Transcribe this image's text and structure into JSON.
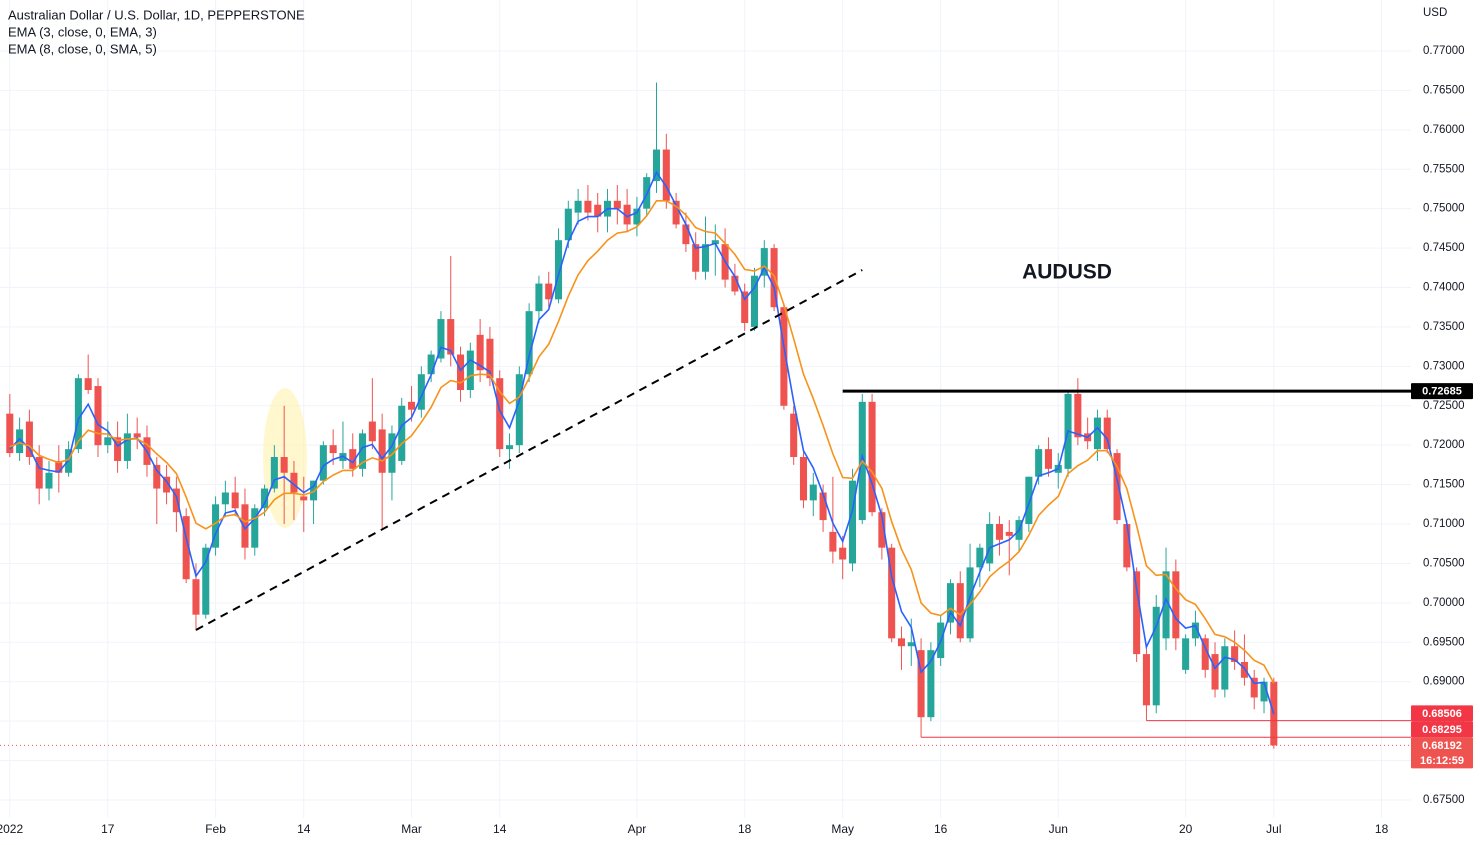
{
  "chart_data": {
    "type": "candlestick",
    "title": "Australian Dollar / U.S. Dollar, 1D, PEPPERSTONE",
    "currency": "USD",
    "annotation": "AUDUSD",
    "countdown": "16:12:59",
    "up_color": "#26a69a",
    "down_color": "#ef5350",
    "grid": true,
    "xlim": [
      "2021-12-31",
      "2022-07-21"
    ],
    "ylim": [
      0.67271,
      0.77647
    ],
    "xticks": [
      {
        "value": "2022-01-03",
        "label": "2022"
      },
      {
        "value": "2022-01-17",
        "label": "17"
      },
      {
        "value": "2022-02-01",
        "label": "Feb"
      },
      {
        "value": "2022-02-14",
        "label": "14"
      },
      {
        "value": "2022-03-01",
        "label": "Mar"
      },
      {
        "value": "2022-03-14",
        "label": "14"
      },
      {
        "value": "2022-04-01",
        "label": "Apr"
      },
      {
        "value": "2022-04-18",
        "label": "18"
      },
      {
        "value": "2022-05-02",
        "label": "May"
      },
      {
        "value": "2022-05-16",
        "label": "16"
      },
      {
        "value": "2022-06-01",
        "label": "Jun"
      },
      {
        "value": "2022-06-20",
        "label": "20"
      },
      {
        "value": "2022-07-01",
        "label": "Jul"
      },
      {
        "value": "2022-07-18",
        "label": "18"
      }
    ],
    "yticks": [
      {
        "value": 0.675,
        "label": "0.67500"
      },
      {
        "value": 0.68,
        "label": "0.68000"
      },
      {
        "value": 0.685,
        "label": "0.68500"
      },
      {
        "value": 0.69,
        "label": "0.69000"
      },
      {
        "value": 0.695,
        "label": "0.69500"
      },
      {
        "value": 0.7,
        "label": "0.70000"
      },
      {
        "value": 0.705,
        "label": "0.70500"
      },
      {
        "value": 0.71,
        "label": "0.71000"
      },
      {
        "value": 0.715,
        "label": "0.71500"
      },
      {
        "value": 0.72,
        "label": "0.72000"
      },
      {
        "value": 0.725,
        "label": "0.72500"
      },
      {
        "value": 0.73,
        "label": "0.73000"
      },
      {
        "value": 0.735,
        "label": "0.73500"
      },
      {
        "value": 0.74,
        "label": "0.74000"
      },
      {
        "value": 0.745,
        "label": "0.74500"
      },
      {
        "value": 0.75,
        "label": "0.75000"
      },
      {
        "value": 0.755,
        "label": "0.75500"
      },
      {
        "value": 0.76,
        "label": "0.76000"
      },
      {
        "value": 0.765,
        "label": "0.76500"
      },
      {
        "value": 0.77,
        "label": "0.77000"
      }
    ],
    "x": [
      "2022-01-03",
      "2022-01-04",
      "2022-01-05",
      "2022-01-06",
      "2022-01-07",
      "2022-01-10",
      "2022-01-11",
      "2022-01-12",
      "2022-01-13",
      "2022-01-14",
      "2022-01-17",
      "2022-01-18",
      "2022-01-19",
      "2022-01-20",
      "2022-01-21",
      "2022-01-24",
      "2022-01-25",
      "2022-01-26",
      "2022-01-27",
      "2022-01-28",
      "2022-01-31",
      "2022-02-01",
      "2022-02-02",
      "2022-02-03",
      "2022-02-04",
      "2022-02-07",
      "2022-02-08",
      "2022-02-09",
      "2022-02-10",
      "2022-02-11",
      "2022-02-14",
      "2022-02-15",
      "2022-02-16",
      "2022-02-17",
      "2022-02-18",
      "2022-02-21",
      "2022-02-22",
      "2022-02-23",
      "2022-02-24",
      "2022-02-25",
      "2022-02-28",
      "2022-03-01",
      "2022-03-02",
      "2022-03-03",
      "2022-03-04",
      "2022-03-07",
      "2022-03-08",
      "2022-03-09",
      "2022-03-10",
      "2022-03-11",
      "2022-03-14",
      "2022-03-15",
      "2022-03-16",
      "2022-03-17",
      "2022-03-18",
      "2022-03-21",
      "2022-03-22",
      "2022-03-23",
      "2022-03-24",
      "2022-03-25",
      "2022-03-28",
      "2022-03-29",
      "2022-03-30",
      "2022-03-31",
      "2022-04-01",
      "2022-04-04",
      "2022-04-05",
      "2022-04-06",
      "2022-04-07",
      "2022-04-08",
      "2022-04-11",
      "2022-04-12",
      "2022-04-13",
      "2022-04-14",
      "2022-04-15",
      "2022-04-18",
      "2022-04-19",
      "2022-04-20",
      "2022-04-21",
      "2022-04-22",
      "2022-04-25",
      "2022-04-26",
      "2022-04-27",
      "2022-04-28",
      "2022-04-29",
      "2022-05-02",
      "2022-05-03",
      "2022-05-04",
      "2022-05-05",
      "2022-05-06",
      "2022-05-09",
      "2022-05-10",
      "2022-05-11",
      "2022-05-12",
      "2022-05-13",
      "2022-05-16",
      "2022-05-17",
      "2022-05-18",
      "2022-05-19",
      "2022-05-20",
      "2022-05-23",
      "2022-05-24",
      "2022-05-25",
      "2022-05-26",
      "2022-05-27",
      "2022-05-30",
      "2022-05-31",
      "2022-06-01",
      "2022-06-02",
      "2022-06-03",
      "2022-06-06",
      "2022-06-07",
      "2022-06-08",
      "2022-06-09",
      "2022-06-10",
      "2022-06-13",
      "2022-06-14",
      "2022-06-15",
      "2022-06-16",
      "2022-06-17",
      "2022-06-20",
      "2022-06-21",
      "2022-06-22",
      "2022-06-23",
      "2022-06-24",
      "2022-06-27",
      "2022-06-28",
      "2022-06-29",
      "2022-06-30",
      "2022-07-01"
    ],
    "open": [
      0.724,
      0.719,
      0.723,
      0.7185,
      0.7145,
      0.718,
      0.7165,
      0.7195,
      0.7285,
      0.7275,
      0.72,
      0.721,
      0.718,
      0.7215,
      0.721,
      0.7175,
      0.716,
      0.7145,
      0.711,
      0.703,
      0.6985,
      0.707,
      0.7125,
      0.714,
      0.7125,
      0.707,
      0.712,
      0.7145,
      0.7185,
      0.7165,
      0.7135,
      0.713,
      0.7155,
      0.72,
      0.718,
      0.7195,
      0.717,
      0.723,
      0.722,
      0.7165,
      0.718,
      0.7255,
      0.7245,
      0.729,
      0.731,
      0.736,
      0.7315,
      0.727,
      0.734,
      0.7335,
      0.7285,
      0.7195,
      0.72,
      0.729,
      0.737,
      0.7405,
      0.7385,
      0.746,
      0.7495,
      0.751,
      0.7505,
      0.749,
      0.751,
      0.7505,
      0.748,
      0.75,
      0.7535,
      0.7575,
      0.751,
      0.748,
      0.7455,
      0.742,
      0.7455,
      0.7455,
      0.7415,
      0.7395,
      0.735,
      0.7415,
      0.745,
      0.7375,
      0.724,
      0.7185,
      0.713,
      0.714,
      0.709,
      0.707,
      0.705,
      0.7105,
      0.7255,
      0.7115,
      0.707,
      0.6955,
      0.6945,
      0.694,
      0.6855,
      0.693,
      0.6975,
      0.7025,
      0.6955,
      0.7045,
      0.705,
      0.71,
      0.709,
      0.708,
      0.71,
      0.716,
      0.7195,
      0.7165,
      0.717,
      0.7265,
      0.7215,
      0.7195,
      0.7235,
      0.719,
      0.71,
      0.704,
      0.6935,
      0.687,
      0.6955,
      0.704,
      0.6915,
      0.6955,
      0.6955,
      0.6935,
      0.689,
      0.6945,
      0.6925,
      0.6905,
      0.6875,
      0.69
    ],
    "high": [
      0.7265,
      0.7235,
      0.7245,
      0.72,
      0.718,
      0.72,
      0.7205,
      0.729,
      0.7315,
      0.7285,
      0.723,
      0.723,
      0.724,
      0.7235,
      0.7225,
      0.7185,
      0.7175,
      0.716,
      0.712,
      0.705,
      0.7075,
      0.7135,
      0.7155,
      0.716,
      0.7145,
      0.7125,
      0.715,
      0.72,
      0.725,
      0.718,
      0.716,
      0.7155,
      0.7205,
      0.722,
      0.723,
      0.7215,
      0.722,
      0.7285,
      0.724,
      0.7225,
      0.726,
      0.7275,
      0.73,
      0.732,
      0.737,
      0.744,
      0.7325,
      0.733,
      0.736,
      0.735,
      0.7295,
      0.7215,
      0.73,
      0.738,
      0.7415,
      0.742,
      0.7475,
      0.751,
      0.7525,
      0.753,
      0.752,
      0.7525,
      0.753,
      0.7525,
      0.7515,
      0.7545,
      0.766,
      0.7595,
      0.752,
      0.7495,
      0.747,
      0.749,
      0.748,
      0.7475,
      0.743,
      0.7405,
      0.7425,
      0.746,
      0.7455,
      0.738,
      0.725,
      0.7195,
      0.7165,
      0.715,
      0.716,
      0.7085,
      0.717,
      0.7265,
      0.7265,
      0.712,
      0.7075,
      0.697,
      0.698,
      0.6955,
      0.695,
      0.6985,
      0.703,
      0.704,
      0.7075,
      0.7075,
      0.7115,
      0.711,
      0.7105,
      0.711,
      0.716,
      0.72,
      0.721,
      0.719,
      0.727,
      0.7285,
      0.7235,
      0.7245,
      0.7245,
      0.7195,
      0.7105,
      0.7045,
      0.6945,
      0.701,
      0.707,
      0.7055,
      0.696,
      0.699,
      0.696,
      0.695,
      0.6955,
      0.6965,
      0.696,
      0.6915,
      0.6905,
      0.6905
    ],
    "low": [
      0.7185,
      0.718,
      0.7175,
      0.7125,
      0.713,
      0.714,
      0.716,
      0.719,
      0.7265,
      0.7185,
      0.719,
      0.7165,
      0.717,
      0.7195,
      0.716,
      0.71,
      0.7125,
      0.709,
      0.7025,
      0.6965,
      0.698,
      0.706,
      0.711,
      0.711,
      0.7055,
      0.706,
      0.711,
      0.714,
      0.71,
      0.7105,
      0.709,
      0.71,
      0.715,
      0.7175,
      0.717,
      0.716,
      0.716,
      0.7195,
      0.7095,
      0.713,
      0.7175,
      0.723,
      0.7235,
      0.728,
      0.7305,
      0.73,
      0.7255,
      0.726,
      0.728,
      0.7275,
      0.7185,
      0.717,
      0.719,
      0.728,
      0.7355,
      0.7375,
      0.738,
      0.745,
      0.748,
      0.7485,
      0.747,
      0.747,
      0.748,
      0.747,
      0.7465,
      0.749,
      0.752,
      0.75,
      0.7475,
      0.7445,
      0.741,
      0.741,
      0.7415,
      0.74,
      0.739,
      0.7345,
      0.7345,
      0.74,
      0.737,
      0.7245,
      0.7175,
      0.712,
      0.711,
      0.709,
      0.705,
      0.703,
      0.704,
      0.71,
      0.711,
      0.7055,
      0.695,
      0.6915,
      0.692,
      0.68295,
      0.685,
      0.692,
      0.696,
      0.695,
      0.695,
      0.702,
      0.704,
      0.706,
      0.7035,
      0.7065,
      0.709,
      0.715,
      0.716,
      0.7145,
      0.716,
      0.72,
      0.7195,
      0.718,
      0.719,
      0.71,
      0.704,
      0.6925,
      0.68506,
      0.686,
      0.694,
      0.694,
      0.691,
      0.6945,
      0.6905,
      0.688,
      0.688,
      0.6915,
      0.6895,
      0.6865,
      0.686,
      0.6815
    ],
    "close": [
      0.719,
      0.722,
      0.7185,
      0.7145,
      0.7165,
      0.7165,
      0.7195,
      0.7285,
      0.727,
      0.72,
      0.721,
      0.718,
      0.7215,
      0.721,
      0.7175,
      0.7145,
      0.714,
      0.7115,
      0.703,
      0.6985,
      0.707,
      0.7125,
      0.714,
      0.712,
      0.707,
      0.712,
      0.7145,
      0.7185,
      0.7165,
      0.714,
      0.713,
      0.7155,
      0.72,
      0.719,
      0.719,
      0.717,
      0.7215,
      0.7205,
      0.7165,
      0.7215,
      0.725,
      0.7245,
      0.729,
      0.7315,
      0.736,
      0.7315,
      0.727,
      0.732,
      0.7295,
      0.7285,
      0.7195,
      0.72,
      0.729,
      0.737,
      0.7405,
      0.7385,
      0.746,
      0.75,
      0.751,
      0.7495,
      0.749,
      0.751,
      0.75,
      0.748,
      0.75,
      0.754,
      0.7575,
      0.751,
      0.748,
      0.7455,
      0.742,
      0.7455,
      0.746,
      0.741,
      0.7395,
      0.7355,
      0.7415,
      0.745,
      0.7375,
      0.725,
      0.7185,
      0.713,
      0.715,
      0.7105,
      0.7065,
      0.7055,
      0.7155,
      0.7255,
      0.7115,
      0.707,
      0.6955,
      0.6945,
      0.695,
      0.6855,
      0.694,
      0.6975,
      0.7025,
      0.6955,
      0.7045,
      0.707,
      0.71,
      0.708,
      0.7085,
      0.7105,
      0.716,
      0.7195,
      0.717,
      0.7175,
      0.7265,
      0.721,
      0.7205,
      0.7235,
      0.7195,
      0.7105,
      0.7045,
      0.6935,
      0.687,
      0.6995,
      0.704,
      0.6955,
      0.6955,
      0.6975,
      0.6915,
      0.689,
      0.6945,
      0.6925,
      0.6905,
      0.688,
      0.69,
      0.68192
    ],
    "overlays": [
      {
        "name": "EMA (3, close, 0, EMA, 3)",
        "color": "#2962ff",
        "values": [
          0.7195,
          0.7208,
          0.7196,
          0.7171,
          0.7168,
          0.7166,
          0.7181,
          0.7233,
          0.7252,
          0.7226,
          0.7218,
          0.7199,
          0.7207,
          0.7209,
          0.7192,
          0.7168,
          0.7154,
          0.7135,
          0.7082,
          0.7034,
          0.7052,
          0.7088,
          0.7114,
          0.7117,
          0.7094,
          0.7107,
          0.7126,
          0.7156,
          0.716,
          0.715,
          0.714,
          0.7148,
          0.7174,
          0.7182,
          0.7186,
          0.7178,
          0.7197,
          0.7201,
          0.7183,
          0.7199,
          0.7225,
          0.7235,
          0.7262,
          0.7289,
          0.7324,
          0.732,
          0.7295,
          0.7308,
          0.7301,
          0.7293,
          0.7244,
          0.7222,
          0.7256,
          0.7313,
          0.7359,
          0.7372,
          0.7416,
          0.7458,
          0.7484,
          0.749,
          0.749,
          0.75,
          0.75,
          0.749,
          0.7495,
          0.7518,
          0.7546,
          0.7528,
          0.7504,
          0.748,
          0.745,
          0.7452,
          0.7456,
          0.7433,
          0.7414,
          0.7385,
          0.74,
          0.7425,
          0.74,
          0.7325,
          0.7255,
          0.7193,
          0.7171,
          0.7138,
          0.7101,
          0.7078,
          0.7117,
          0.7186,
          0.7151,
          0.711,
          0.7033,
          0.6989,
          0.6969,
          0.6912,
          0.6926,
          0.6951,
          0.6988,
          0.6971,
          0.7008,
          0.7039,
          0.707,
          0.7075,
          0.708,
          0.7092,
          0.7126,
          0.7161,
          0.7165,
          0.717,
          0.7218,
          0.7214,
          0.721,
          0.7222,
          0.7208,
          0.7157,
          0.7101,
          0.7018,
          0.6944,
          0.697,
          0.7005,
          0.698,
          0.6968,
          0.6971,
          0.6943,
          0.6917,
          0.6931,
          0.6928,
          0.6917,
          0.6898,
          0.6899,
          0.6859
        ]
      },
      {
        "name": "EMA (8, close, 0, SMA, 5)",
        "color": "#f7931a",
        "values": [
          0.7198,
          0.7203,
          0.7199,
          0.7187,
          0.7182,
          0.7178,
          0.7182,
          0.7205,
          0.7219,
          0.7215,
          0.7214,
          0.7206,
          0.7208,
          0.7208,
          0.7201,
          0.7189,
          0.7178,
          0.7164,
          0.7134,
          0.7101,
          0.7094,
          0.7101,
          0.711,
          0.7112,
          0.7103,
          0.7107,
          0.7115,
          0.7131,
          0.7139,
          0.7139,
          0.7137,
          0.7141,
          0.7154,
          0.7162,
          0.7168,
          0.7168,
          0.7178,
          0.7184,
          0.718,
          0.7188,
          0.7202,
          0.7212,
          0.7229,
          0.7248,
          0.7273,
          0.7282,
          0.7279,
          0.7288,
          0.729,
          0.7289,
          0.7268,
          0.7253,
          0.7261,
          0.7285,
          0.7312,
          0.7328,
          0.7357,
          0.7389,
          0.7416,
          0.7434,
          0.7446,
          0.746,
          0.7469,
          0.7471,
          0.7477,
          0.7491,
          0.751,
          0.751,
          0.7503,
          0.7492,
          0.7476,
          0.7471,
          0.7469,
          0.7456,
          0.7442,
          0.7423,
          0.7421,
          0.7427,
          0.7415,
          0.7378,
          0.7335,
          0.729,
          0.7259,
          0.7225,
          0.7189,
          0.7159,
          0.7158,
          0.718,
          0.7166,
          0.7145,
          0.7103,
          0.7068,
          0.7042,
          0.7,
          0.6987,
          0.6984,
          0.6993,
          0.6985,
          0.6998,
          0.7014,
          0.7033,
          0.7044,
          0.7053,
          0.7065,
          0.7086,
          0.7111,
          0.7124,
          0.7135,
          0.7164,
          0.7174,
          0.7181,
          0.7193,
          0.7193,
          0.7173,
          0.7145,
          0.7098,
          0.7047,
          0.7035,
          0.7036,
          0.7018,
          0.7004,
          0.6998,
          0.698,
          0.696,
          0.6957,
          0.695,
          0.694,
          0.6927,
          0.6921,
          0.6898
        ]
      }
    ],
    "trendline": {
      "x": [
        "2022-01-28",
        "2022-05-04"
      ],
      "y": [
        0.69656,
        0.74222
      ]
    },
    "price_lines": [
      {
        "value": 0.72685,
        "from": "2022-05-02",
        "color": "#000000"
      },
      {
        "value": 0.68506,
        "from": "2022-06-14",
        "color": "#f23645"
      },
      {
        "value": 0.68295,
        "from": "2022-05-12",
        "color": "#f23645"
      }
    ]
  }
}
